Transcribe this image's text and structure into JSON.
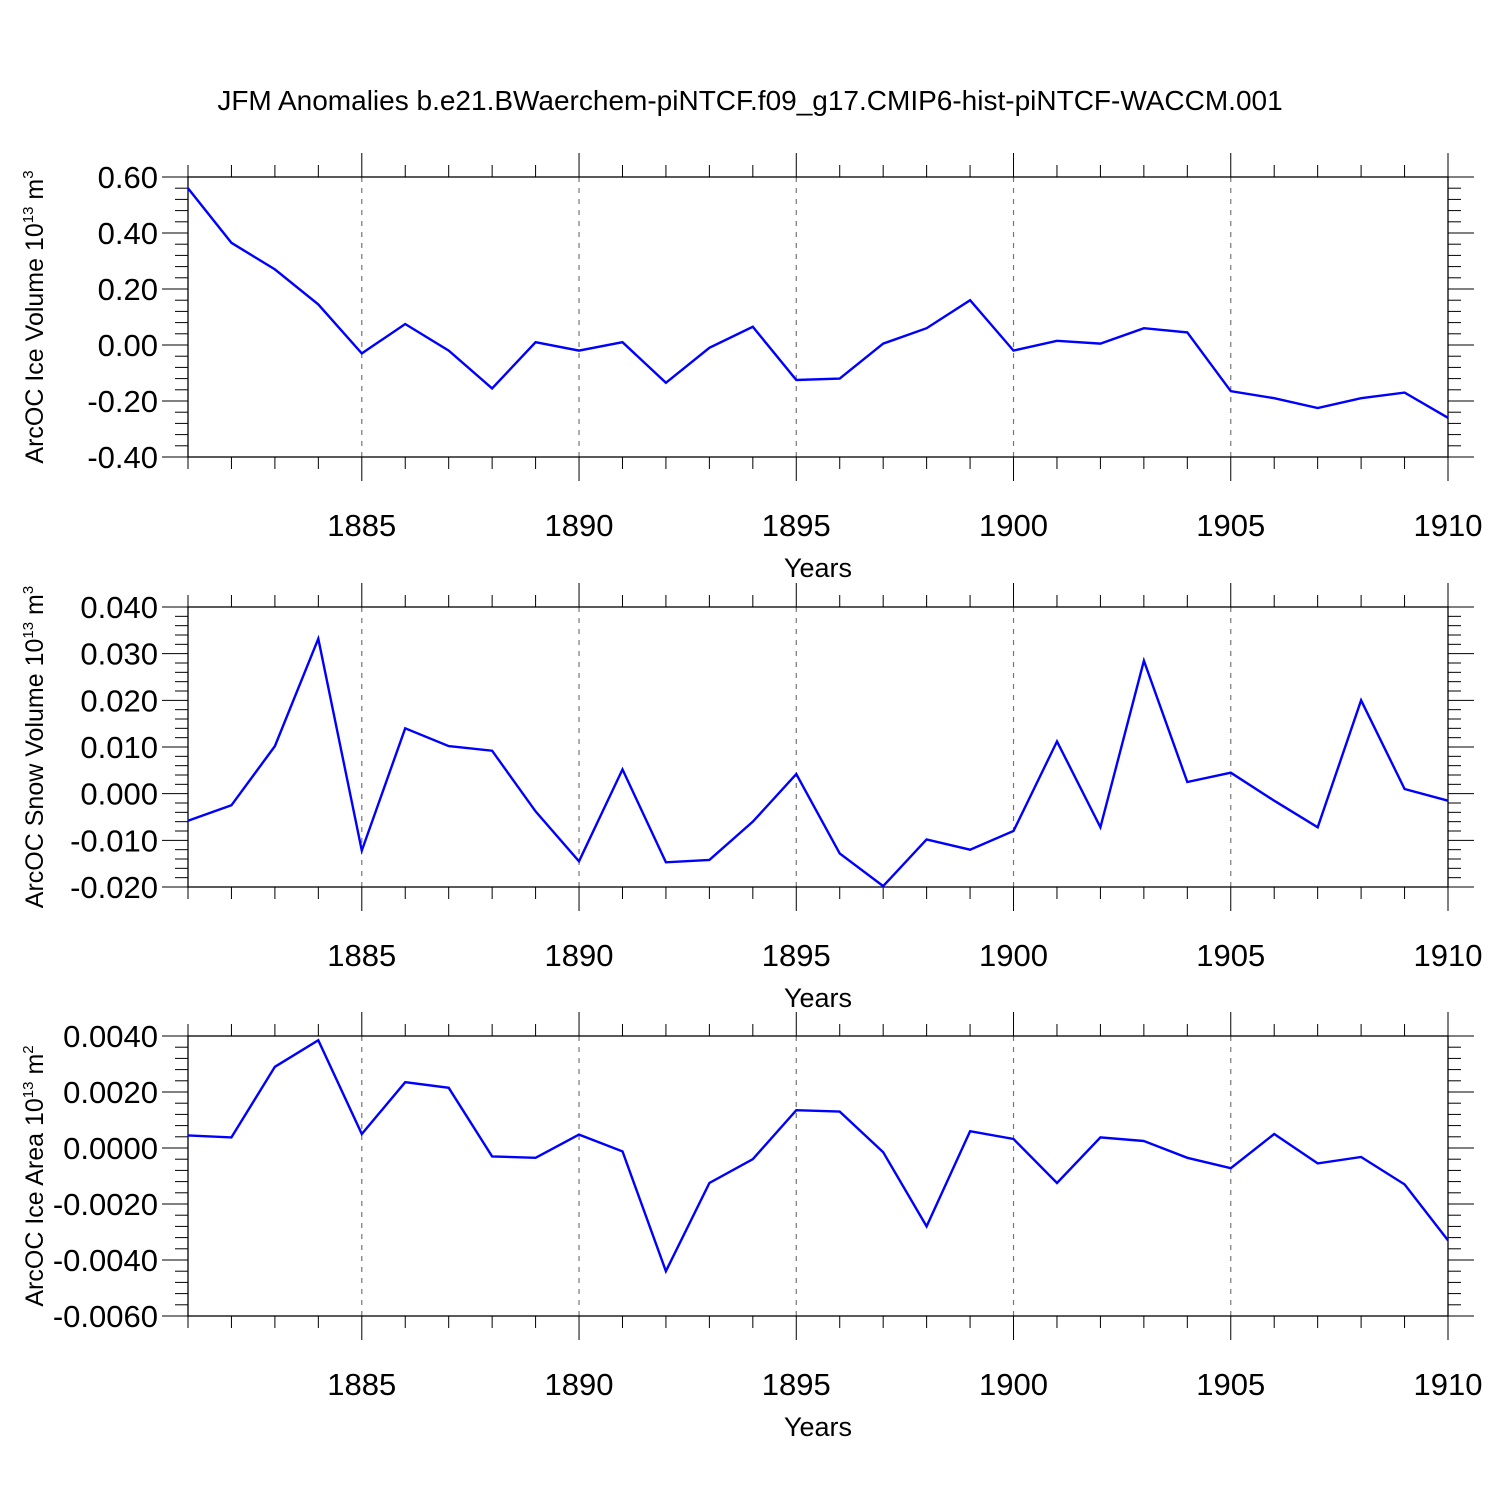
{
  "title": "JFM Anomalies b.e21.BWaerchem-piNTCF.f09_g17.CMIP6-hist-piNTCF-WACCM.001",
  "line_color": "#0000ff",
  "chart_data": [
    {
      "type": "line",
      "ylabel": "ArcOC Ice Volume 10",
      "ylabel_sup": "13",
      "ylabel_unit": "m",
      "ylabel_unit_sup": "3",
      "xlabel": "Years",
      "xlim": [
        1881,
        1910
      ],
      "ylim": [
        -0.4,
        0.6
      ],
      "yticks": [
        0.6,
        0.4,
        0.2,
        0.0,
        -0.2,
        -0.4
      ],
      "ytick_labels": [
        "0.60",
        "0.40",
        "0.20",
        "0.00",
        "-0.20",
        "-0.40"
      ],
      "xticks": [
        1885,
        1890,
        1895,
        1900,
        1905,
        1910
      ],
      "xtick_labels": [
        "1885",
        "1890",
        "1895",
        "1900",
        "1905",
        "1910"
      ],
      "x": [
        1881,
        1882,
        1883,
        1884,
        1885,
        1886,
        1887,
        1888,
        1889,
        1890,
        1891,
        1892,
        1893,
        1894,
        1895,
        1896,
        1897,
        1898,
        1899,
        1900,
        1901,
        1902,
        1903,
        1904,
        1905,
        1906,
        1907,
        1908,
        1909,
        1910
      ],
      "y": [
        0.56,
        0.365,
        0.27,
        0.145,
        -0.03,
        0.075,
        -0.02,
        -0.155,
        0.01,
        -0.02,
        0.01,
        -0.135,
        -0.01,
        0.065,
        -0.125,
        -0.12,
        0.005,
        0.06,
        0.16,
        -0.02,
        0.015,
        0.005,
        0.06,
        0.045,
        -0.165,
        -0.19,
        -0.225,
        -0.19,
        -0.17,
        -0.26
      ]
    },
    {
      "type": "line",
      "ylabel": "ArcOC Snow Volume 10",
      "ylabel_sup": "13",
      "ylabel_unit": "m",
      "ylabel_unit_sup": "3",
      "xlabel": "Years",
      "xlim": [
        1881,
        1910
      ],
      "ylim": [
        -0.02,
        0.04
      ],
      "yticks": [
        0.04,
        0.03,
        0.02,
        0.01,
        0.0,
        -0.01,
        -0.02
      ],
      "ytick_labels": [
        "0.040",
        "0.030",
        "0.020",
        "0.010",
        "0.000",
        "-0.010",
        "-0.020"
      ],
      "xticks": [
        1885,
        1890,
        1895,
        1900,
        1905,
        1910
      ],
      "xtick_labels": [
        "1885",
        "1890",
        "1895",
        "1900",
        "1905",
        "1910"
      ],
      "x": [
        1881,
        1882,
        1883,
        1884,
        1885,
        1886,
        1887,
        1888,
        1889,
        1890,
        1891,
        1892,
        1893,
        1894,
        1895,
        1896,
        1897,
        1898,
        1899,
        1900,
        1901,
        1902,
        1903,
        1904,
        1905,
        1906,
        1907,
        1908,
        1909,
        1910
      ],
      "y": [
        -0.0058,
        -0.0025,
        0.0102,
        0.0332,
        -0.0122,
        0.014,
        0.0102,
        0.0092,
        -0.0038,
        -0.0145,
        0.0052,
        -0.0147,
        -0.0142,
        -0.006,
        0.0042,
        -0.0128,
        -0.0198,
        -0.0098,
        -0.012,
        -0.008,
        0.0112,
        -0.0072,
        0.0285,
        0.0025,
        0.0045,
        -0.0015,
        -0.0072,
        0.02,
        0.001,
        -0.0015
      ]
    },
    {
      "type": "line",
      "ylabel": "ArcOC Ice Area 10",
      "ylabel_sup": "13",
      "ylabel_unit": "m",
      "ylabel_unit_sup": "2",
      "xlabel": "Years",
      "xlim": [
        1881,
        1910
      ],
      "ylim": [
        -0.006,
        0.004
      ],
      "yticks": [
        0.004,
        0.002,
        0.0,
        -0.002,
        -0.004,
        -0.006
      ],
      "ytick_labels": [
        "0.0040",
        "0.0020",
        "0.0000",
        "-0.0020",
        "-0.0040",
        "-0.0060"
      ],
      "xticks": [
        1885,
        1890,
        1895,
        1900,
        1905,
        1910
      ],
      "xtick_labels": [
        "1885",
        "1890",
        "1895",
        "1900",
        "1905",
        "1910"
      ],
      "x": [
        1881,
        1882,
        1883,
        1884,
        1885,
        1886,
        1887,
        1888,
        1889,
        1890,
        1891,
        1892,
        1893,
        1894,
        1895,
        1896,
        1897,
        1898,
        1899,
        1900,
        1901,
        1902,
        1903,
        1904,
        1905,
        1906,
        1907,
        1908,
        1909,
        1910
      ],
      "y": [
        0.00045,
        0.00038,
        0.0029,
        0.00385,
        0.0005,
        0.00235,
        0.00215,
        -0.0003,
        -0.00035,
        0.00048,
        -0.00012,
        -0.0044,
        -0.00125,
        -0.0004,
        0.00135,
        0.0013,
        -0.00015,
        -0.0028,
        0.0006,
        0.00032,
        -0.00125,
        0.00038,
        0.00025,
        -0.00035,
        -0.00072,
        0.0005,
        -0.00055,
        -0.00032,
        -0.0013,
        -0.0033
      ]
    }
  ]
}
